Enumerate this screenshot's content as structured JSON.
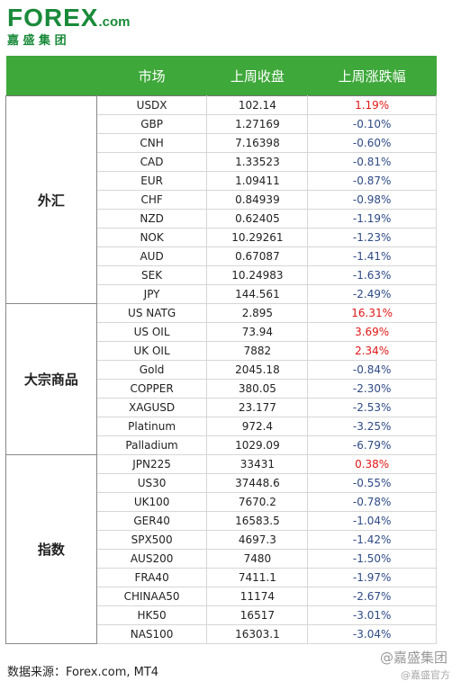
{
  "header": {
    "logo_fx": "FOREX",
    "logo_com": ".com",
    "subtitle": "嘉 盛 集 团"
  },
  "table": {
    "columns": [
      "市场",
      "上周收盘",
      "上周涨跌幅"
    ],
    "groups": [
      {
        "name": "外汇",
        "rows": [
          [
            "USDX",
            "102.14",
            "1.19%"
          ],
          [
            "GBP",
            "1.27169",
            "-0.10%"
          ],
          [
            "CNH",
            "7.16398",
            "-0.60%"
          ],
          [
            "CAD",
            "1.33523",
            "-0.81%"
          ],
          [
            "EUR",
            "1.09411",
            "-0.87%"
          ],
          [
            "CHF",
            "0.84939",
            "-0.98%"
          ],
          [
            "NZD",
            "0.62405",
            "-1.19%"
          ],
          [
            "NOK",
            "10.29261",
            "-1.23%"
          ],
          [
            "AUD",
            "0.67087",
            "-1.41%"
          ],
          [
            "SEK",
            "10.24983",
            "-1.63%"
          ],
          [
            "JPY",
            "144.561",
            "-2.49%"
          ]
        ]
      },
      {
        "name": "大宗商品",
        "rows": [
          [
            "US NATG",
            "2.895",
            "16.31%"
          ],
          [
            "US OIL",
            "73.94",
            "3.69%"
          ],
          [
            "UK OIL",
            "7882",
            "2.34%"
          ],
          [
            "Gold",
            "2045.18",
            "-0.84%"
          ],
          [
            "COPPER",
            "380.05",
            "-2.30%"
          ],
          [
            "XAGUSD",
            "23.177",
            "-2.53%"
          ],
          [
            "Platinum",
            "972.4",
            "-3.25%"
          ],
          [
            "Palladium",
            "1029.09",
            "-6.79%"
          ]
        ]
      },
      {
        "name": "指数",
        "rows": [
          [
            "JPN225",
            "33431",
            "0.38%"
          ],
          [
            "US30",
            "37448.6",
            "-0.55%"
          ],
          [
            "UK100",
            "7670.2",
            "-0.78%"
          ],
          [
            "GER40",
            "16583.5",
            "-1.04%"
          ],
          [
            "SPX500",
            "4697.3",
            "-1.42%"
          ],
          [
            "AUS200",
            "7480",
            "-1.50%"
          ],
          [
            "FRA40",
            "7411.1",
            "-1.97%"
          ],
          [
            "CHINAA50",
            "11174",
            "-2.67%"
          ],
          [
            "HK50",
            "16517",
            "-3.01%"
          ],
          [
            "NAS100",
            "16303.1",
            "-3.04%"
          ]
        ]
      }
    ]
  },
  "footer": {
    "source": "数据来源：Forex.com, MT4",
    "watermark": "@嘉盛集团",
    "watermark2": "@嘉盛官方"
  }
}
